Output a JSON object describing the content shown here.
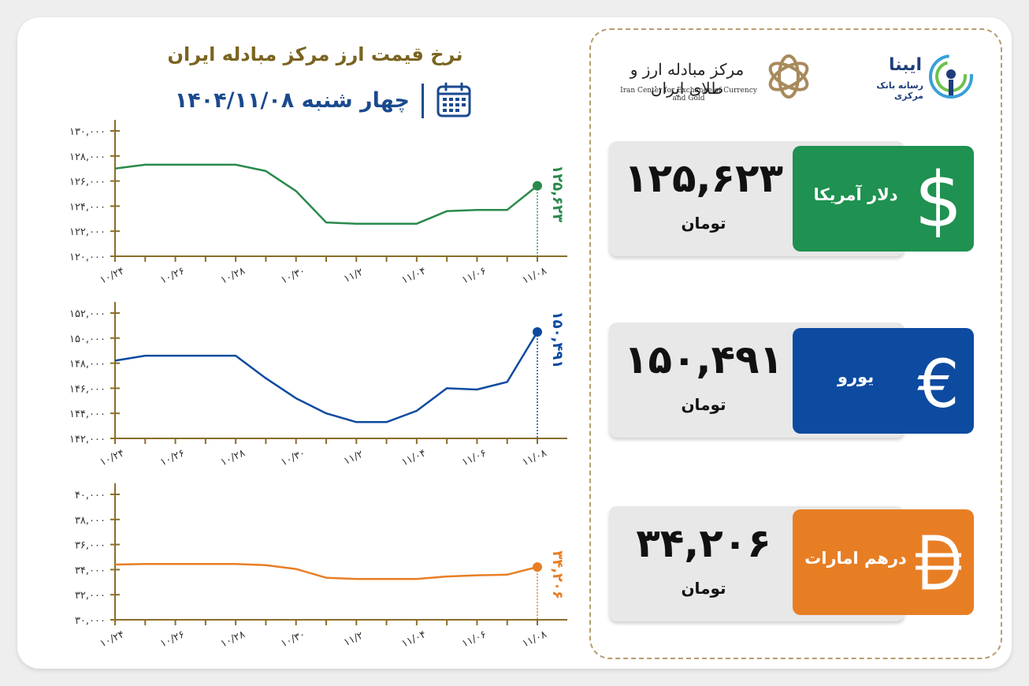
{
  "header": {
    "title": "نرخ قیمت ارز مرکز مبادله ایران",
    "date": "چهار شنبه ۱۴۰۴/۱۱/۰۸"
  },
  "logos": {
    "center_name_fa": "مرکز مبادله ارز و طلای ایران",
    "center_name_en": "Iran Center for Exchange of Currency and Gold",
    "ibena_name": "ایبنا",
    "ibena_sub": "رسانه بانک مرکزی"
  },
  "rates": [
    {
      "name": "دلار آمریکا",
      "value": "۱۲۵,۶۲۳",
      "unit": "تومان",
      "color": "#1f9150",
      "icon": "dollar-icon"
    },
    {
      "name": "یورو",
      "value": "۱۵۰,۴۹۱",
      "unit": "تومان",
      "color": "#0d4ba0",
      "icon": "euro-icon"
    },
    {
      "name": "درهم امارات",
      "value": "۳۴,۲۰۶",
      "unit": "تومان",
      "color": "#e87e24",
      "icon": "dirham-icon"
    }
  ],
  "chart_data": [
    {
      "type": "line",
      "color": "#2a8a4c",
      "x": [
        "۱۰/۲۴",
        "۱۰/۲۵",
        "۱۰/۲۶",
        "۱۰/۲۷",
        "۱۰/۲۸",
        "۱۰/۲۹",
        "۱۰/۳۰",
        "۱۱/۱",
        "۱۱/۲",
        "۱۱/۳",
        "۱۱/۰۴",
        "۱۱/۵",
        "۱۱/۰۶",
        "۱۱/۷",
        "۱۱/۰۸"
      ],
      "x_tick_labels": [
        "۱۰/۲۴",
        "۱۰/۲۶",
        "۱۰/۲۸",
        "۱۰/۳۰",
        "۱۱/۲",
        "۱۱/۰۴",
        "۱۱/۰۶",
        "۱۱/۰۸"
      ],
      "values": [
        127000,
        127300,
        127300,
        127300,
        127300,
        126800,
        125200,
        122700,
        122600,
        122600,
        122600,
        123600,
        123700,
        123700,
        125623
      ],
      "ylim": [
        120000,
        130000
      ],
      "y_ticks": [
        120000,
        122000,
        124000,
        126000,
        128000,
        130000
      ],
      "y_tick_labels": [
        "۱۲۰,۰۰۰",
        "۱۲۲,۰۰۰",
        "۱۲۴,۰۰۰",
        "۱۲۶,۰۰۰",
        "۱۲۸,۰۰۰",
        "۱۳۰,۰۰۰"
      ],
      "last_label": "۱۲۵,۶۲۳"
    },
    {
      "type": "line",
      "color": "#0d4ba0",
      "x": [
        "۱۰/۲۴",
        "۱۰/۲۵",
        "۱۰/۲۶",
        "۱۰/۲۷",
        "۱۰/۲۸",
        "۱۰/۲۹",
        "۱۰/۳۰",
        "۱۱/۱",
        "۱۱/۲",
        "۱۱/۳",
        "۱۱/۰۴",
        "۱۱/۵",
        "۱۱/۰۶",
        "۱۱/۷",
        "۱۱/۰۸"
      ],
      "x_tick_labels": [
        "۱۰/۲۴",
        "۱۰/۲۶",
        "۱۰/۲۸",
        "۱۰/۳۰",
        "۱۱/۲",
        "۱۱/۰۴",
        "۱۱/۰۶",
        "۱۱/۰۸"
      ],
      "values": [
        148200,
        148600,
        148600,
        148600,
        148600,
        146800,
        145200,
        144000,
        143300,
        143300,
        144200,
        146000,
        145900,
        146500,
        150491
      ],
      "ylim": [
        142000,
        152000
      ],
      "y_ticks": [
        142000,
        144000,
        146000,
        148000,
        150000,
        152000
      ],
      "y_tick_labels": [
        "۱۴۲,۰۰۰",
        "۱۴۴,۰۰۰",
        "۱۴۶,۰۰۰",
        "۱۴۸,۰۰۰",
        "۱۵۰,۰۰۰",
        "۱۵۲,۰۰۰"
      ],
      "last_label": "۱۵۰,۴۹۱"
    },
    {
      "type": "line",
      "color": "#e87e24",
      "x": [
        "۱۰/۲۴",
        "۱۰/۲۵",
        "۱۰/۲۶",
        "۱۰/۲۷",
        "۱۰/۲۸",
        "۱۰/۲۹",
        "۱۰/۳۰",
        "۱۱/۱",
        "۱۱/۲",
        "۱۱/۳",
        "۱۱/۰۴",
        "۱۱/۵",
        "۱۱/۰۶",
        "۱۱/۷",
        "۱۱/۰۸"
      ],
      "x_tick_labels": [
        "۱۰/۲۴",
        "۱۰/۲۶",
        "۱۰/۲۸",
        "۱۰/۳۰",
        "۱۱/۲",
        "۱۱/۰۴",
        "۱۱/۰۶",
        "۱۱/۰۸"
      ],
      "values": [
        34400,
        34450,
        34450,
        34450,
        34450,
        34350,
        34050,
        33350,
        33250,
        33250,
        33250,
        33450,
        33550,
        33600,
        34206
      ],
      "ylim": [
        30000,
        40000
      ],
      "y_ticks": [
        30000,
        32000,
        34000,
        36000,
        38000,
        40000
      ],
      "y_tick_labels": [
        "۳۰,۰۰۰",
        "۳۲,۰۰۰",
        "۳۴,۰۰۰",
        "۳۶,۰۰۰",
        "۳۸,۰۰۰",
        "۴۰,۰۰۰"
      ],
      "last_label": "۳۴,۲۰۶"
    }
  ]
}
